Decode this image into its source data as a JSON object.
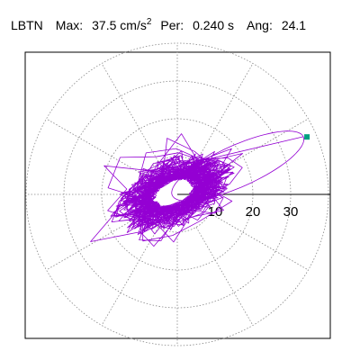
{
  "header": {
    "station": "LBTN",
    "max_label": "Max:",
    "max_value": "37.5 cm/s",
    "max_exp": "2",
    "per_label": "Per:",
    "per_value": "0.240 s",
    "ang_label": "Ang:",
    "ang_value": "24.1"
  },
  "chart_data": {
    "type": "polar-trace",
    "units": "cm/s^2",
    "rings": [
      10,
      20,
      30,
      40
    ],
    "ring_labels": [
      "10",
      "20",
      "30"
    ],
    "spokes_deg": [
      0,
      30,
      60,
      90,
      120,
      150,
      180,
      210,
      240,
      270,
      300,
      330
    ],
    "max_amplitude": 37.5,
    "period_s": 0.24,
    "angle_deg": 24.1,
    "max_point": {
      "x": 34.3,
      "y": 15.2
    },
    "trace_color": "#9400d3",
    "marker_color": "#00a080",
    "grid_color": "#888888"
  }
}
